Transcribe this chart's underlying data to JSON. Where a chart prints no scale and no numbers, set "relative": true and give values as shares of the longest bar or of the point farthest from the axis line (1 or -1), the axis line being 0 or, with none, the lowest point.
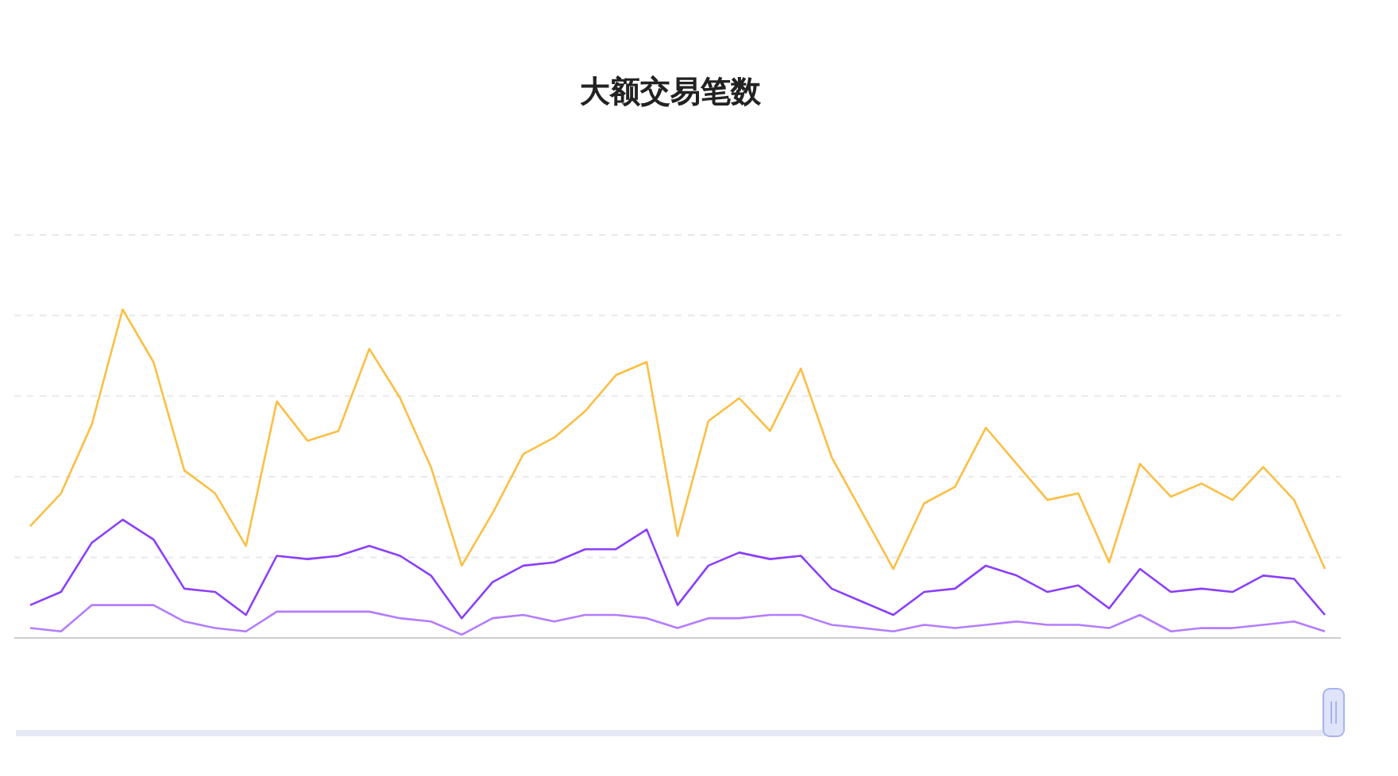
{
  "chart_data": {
    "type": "line",
    "title": "大额交易笔数",
    "relative": true,
    "grid": "y",
    "marker": "none",
    "line_style": "solid",
    "categories": [
      null,
      null,
      null,
      null,
      null,
      null,
      null,
      null,
      null,
      null,
      null,
      null,
      null,
      null,
      null,
      null,
      null,
      null,
      null,
      null,
      null,
      null,
      null,
      null,
      null,
      null,
      null,
      null,
      null,
      null,
      null,
      null,
      null,
      null,
      null,
      null,
      null,
      null,
      null,
      null,
      null,
      null,
      null
    ],
    "series": [
      {
        "color": "#fbbf45",
        "values": [
          0.34,
          0.44,
          0.65,
          1,
          0.84,
          0.51,
          0.44,
          0.28,
          0.72,
          0.6,
          0.63,
          0.88,
          0.73,
          0.52,
          0.22,
          0.38,
          0.56,
          0.61,
          0.69,
          0.8,
          0.84,
          0.31,
          0.66,
          0.73,
          0.63,
          0.82,
          0.55,
          0.38,
          0.21,
          0.41,
          0.46,
          0.64,
          0.53,
          0.42,
          0.44,
          0.23,
          0.53,
          0.43,
          0.47,
          0.42,
          0.52,
          0.42,
          0.21
        ]
      },
      {
        "color": "#8b3ffa",
        "values": [
          0.1,
          0.14,
          0.29,
          0.36,
          0.3,
          0.15,
          0.14,
          0.07,
          0.25,
          0.24,
          0.25,
          0.28,
          0.25,
          0.19,
          0.06,
          0.17,
          0.22,
          0.23,
          0.27,
          0.27,
          0.33,
          0.1,
          0.22,
          0.26,
          0.24,
          0.25,
          0.15,
          0.11,
          0.07,
          0.14,
          0.15,
          0.22,
          0.19,
          0.14,
          0.16,
          0.09,
          0.21,
          0.14,
          0.15,
          0.14,
          0.19,
          0.18,
          0.07
        ]
      },
      {
        "color": "#b47cff",
        "values": [
          0.03,
          0.02,
          0.1,
          0.1,
          0.1,
          0.05,
          0.03,
          0.02,
          0.08,
          0.08,
          0.08,
          0.08,
          0.06,
          0.05,
          0.01,
          0.06,
          0.07,
          0.05,
          0.07,
          0.07,
          0.06,
          0.03,
          0.06,
          0.06,
          0.07,
          0.07,
          0.04,
          0.03,
          0.02,
          0.04,
          0.03,
          0.04,
          0.05,
          0.04,
          0.04,
          0.03,
          0.07,
          0.02,
          0.03,
          0.03,
          0.04,
          0.05,
          0.02
        ]
      }
    ]
  }
}
